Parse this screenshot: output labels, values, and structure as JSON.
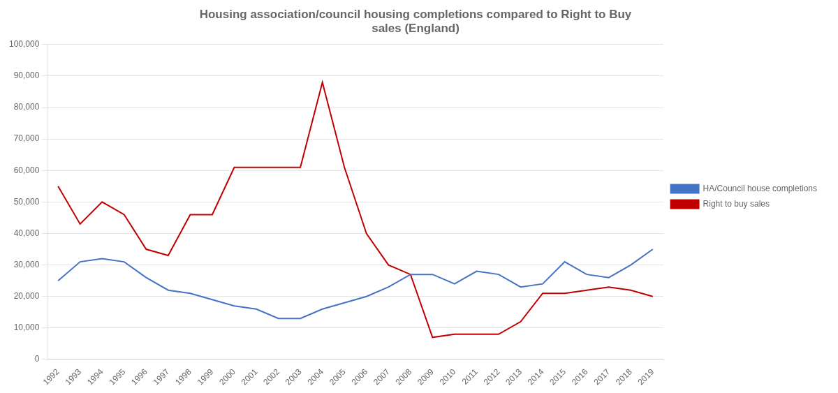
{
  "chart_data": {
    "type": "line",
    "title": "Housing association/council housing completions compared to Right to Buy\nsales (England)",
    "x": [
      1992,
      1993,
      1994,
      1995,
      1996,
      1997,
      1998,
      1999,
      2000,
      2001,
      2002,
      2003,
      2004,
      2005,
      2006,
      2007,
      2008,
      2009,
      2010,
      2011,
      2012,
      2013,
      2014,
      2015,
      2016,
      2017,
      2018,
      2019
    ],
    "series": [
      {
        "name": "HA/Council house completions",
        "color": "#4472C4",
        "values": [
          25000,
          31000,
          32000,
          31000,
          26000,
          22000,
          21000,
          19000,
          17000,
          16000,
          13000,
          13000,
          16000,
          18000,
          20000,
          23000,
          27000,
          27000,
          24000,
          28000,
          27000,
          23000,
          24000,
          31000,
          27000,
          26000,
          30000,
          35000
        ]
      },
      {
        "name": "Right to buy sales",
        "color": "#C00000",
        "values": [
          55000,
          43000,
          50000,
          46000,
          35000,
          33000,
          46000,
          46000,
          61000,
          61000,
          61000,
          61000,
          88000,
          61000,
          40000,
          30000,
          27000,
          7000,
          8000,
          8000,
          8000,
          12000,
          21000,
          21000,
          22000,
          23000,
          22000,
          20000
        ]
      }
    ],
    "xlim": [
      1991.5,
      2019.5
    ],
    "xticks": [
      1992,
      1993,
      1994,
      1995,
      1996,
      1997,
      1998,
      1999,
      2000,
      2001,
      2002,
      2003,
      2004,
      2005,
      2006,
      2007,
      2008,
      2009,
      2010,
      2011,
      2012,
      2013,
      2014,
      2015,
      2016,
      2017,
      2018,
      2019
    ],
    "ylim": [
      0,
      100000
    ],
    "yticks": [
      {
        "value": 0,
        "label": "0"
      },
      {
        "value": 10000,
        "label": "10,000"
      },
      {
        "value": 20000,
        "label": "20,000"
      },
      {
        "value": 30000,
        "label": "30,000"
      },
      {
        "value": 40000,
        "label": "40,000"
      },
      {
        "value": 50000,
        "label": "50,000"
      },
      {
        "value": 60000,
        "label": "60,000"
      },
      {
        "value": 70000,
        "label": "70,000"
      },
      {
        "value": 80000,
        "label": "80,000"
      },
      {
        "value": 90000,
        "label": "90,000"
      },
      {
        "value": 100000,
        "label": "100,000"
      }
    ],
    "grid": "y",
    "legend": "right"
  }
}
